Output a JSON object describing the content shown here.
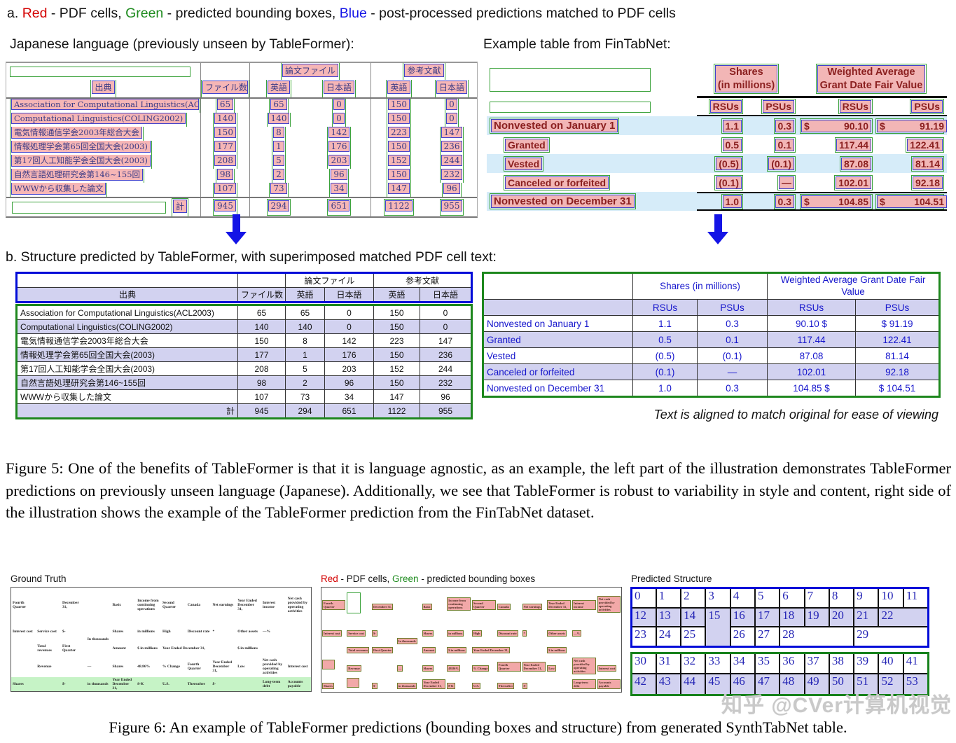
{
  "colors": {
    "pdf_cell_red": "#d40000",
    "predicted_green": "#1e8b1e",
    "postprocessed_blue": "#1414e6",
    "pink_fill": "#f6b6b6",
    "lavender": "#d2d2f0",
    "fintab_maroon": "#8b2020",
    "fintab_stripe": "#d6ecf9",
    "blue_frame": "#000bd8",
    "green_frame": "#1d871d",
    "structure_text": "#2525b5",
    "gt_green_row": "#c6f3c6"
  },
  "captions": {
    "a_prefix": "a. ",
    "a_red": "Red",
    "a_seg1": " - PDF cells, ",
    "a_green": "Green",
    "a_seg2": " - predicted bounding boxes, ",
    "a_blue": "Blue",
    "a_seg3": " - post-processed predictions matched to PDF cells",
    "left_label": "Japanese language (previously unseen by TableFormer):",
    "right_label": "Example table from FinTabNet:",
    "b": "b. Structure predicted by TableFormer, with superimposed matched PDF cell text:",
    "align_note": "Text is aligned to match original for ease of viewing",
    "figure5": "Figure 5:  One of the benefits of TableFormer is that it is language agnostic, as an example, the left part of the illustration demonstrates TableFormer predictions on previously unseen language (Japanese). Additionally, we see that TableFormer is robust to variability in style and content, right side of the illustration shows the example of the TableFormer prediction from the FinTabNet dataset.",
    "gt_label": "Ground Truth",
    "bbox_label_red": "Red",
    "bbox_label_seg1": " - PDF cells, ",
    "bbox_label_green": "Green",
    "bbox_label_seg2": " - predicted bounding boxes",
    "ps_label": "Predicted Structure",
    "watermark": "知乎 @CVer计算机视觉",
    "figure6": "Figure 6:  An example of TableFormer predictions (bounding boxes and structure) from generated SynthTabNet table."
  },
  "japanese_table": {
    "header_groups": [
      "論文ファイル",
      "参考文献"
    ],
    "header_cols": [
      "出典",
      "ファイル数",
      "英語",
      "日本語",
      "英語",
      "日本語"
    ],
    "rows": [
      [
        "Association for Computational Linguistics(ACL2003)",
        "65",
        "65",
        "0",
        "150",
        "0"
      ],
      [
        "Computational Linguistics(COLING2002)",
        "140",
        "140",
        "0",
        "150",
        "0"
      ],
      [
        "電気情報通信学会2003年総合大会",
        "150",
        "8",
        "142",
        "223",
        "147"
      ],
      [
        "情報処理学会第65回全国大会(2003)",
        "177",
        "1",
        "176",
        "150",
        "236"
      ],
      [
        "第17回人工知能学会全国大会(2003)",
        "208",
        "5",
        "203",
        "152",
        "244"
      ],
      [
        "自然言語処理研究会第146~155回",
        "98",
        "2",
        "96",
        "150",
        "232"
      ],
      [
        "WWWから収集した論文",
        "107",
        "73",
        "34",
        "147",
        "96"
      ]
    ],
    "total_label": "計",
    "totals": [
      "945",
      "294",
      "651",
      "1122",
      "955"
    ]
  },
  "fintab_table": {
    "group1_lines": [
      "Shares",
      "(in millions)"
    ],
    "group2_lines": [
      "Weighted Average",
      "Grant Date Fair Value"
    ],
    "group1": "Shares (in millions)",
    "group2": "Weighted Average Grant Date Fair Value",
    "subheaders": [
      "RSUs",
      "PSUs",
      "RSUs",
      "PSUs"
    ],
    "rows": [
      {
        "label": "Nonvested on January 1",
        "values": [
          "1.1",
          "0.3",
          "90.10",
          "91.19"
        ],
        "dollar": [
          2,
          3
        ],
        "bold": true,
        "shaded": true
      },
      {
        "label": "Granted",
        "values": [
          "0.5",
          "0.1",
          "117.44",
          "122.41"
        ],
        "indent": true
      },
      {
        "label": "Vested",
        "values": [
          "(0.5)",
          "(0.1)",
          "87.08",
          "81.14"
        ],
        "indent": true,
        "shaded": true
      },
      {
        "label": "Canceled or forfeited",
        "values": [
          "(0.1)",
          "—",
          "102.01",
          "92.18"
        ],
        "indent": true
      },
      {
        "label": "Nonvested on December 31",
        "values": [
          "1.0",
          "0.3",
          "104.85",
          "104.51"
        ],
        "dollar": [
          2,
          3
        ],
        "bold": true,
        "shaded": true
      }
    ],
    "clean_rows": [
      {
        "label": "Nonvested on January 1",
        "values": [
          "1.1",
          "0.3",
          "90.10 $",
          "$ 91.19"
        ]
      },
      {
        "label": "Granted",
        "values": [
          "0.5",
          "0.1",
          "117.44",
          "122.41"
        ],
        "shaded": true
      },
      {
        "label": "Vested",
        "values": [
          "(0.5)",
          "(0.1)",
          "87.08",
          "81.14"
        ]
      },
      {
        "label": "Canceled or forfeited",
        "values": [
          "(0.1)",
          "—",
          "102.01",
          "92.18"
        ],
        "shaded": true
      },
      {
        "label": "Nonvested on December 31",
        "values": [
          "1.0",
          "0.3",
          "104.85 $",
          "$ 104.51"
        ]
      }
    ]
  },
  "synthtab": {
    "rows": [
      [
        {
          "t": "Fourth Quarter"
        },
        {
          "t": ""
        },
        {
          "t": "December 31,"
        },
        {
          "t": ""
        },
        {
          "t": "Basic"
        },
        {
          "t": "Income from continuing operations"
        },
        {
          "t": "Second Quarter"
        },
        {
          "t": "Canada"
        },
        {
          "t": "Net earnings"
        },
        {
          "t": "Year Ended December 31,"
        },
        {
          "t": "Interest income"
        },
        {
          "t": "Net cash provided by operating activities"
        }
      ],
      [
        {
          "t": "Interest cost"
        },
        {
          "t": "Service cost"
        },
        {
          "t": "$-"
        },
        {
          "t": "In thousands",
          "rs": 2
        },
        {
          "t": "Shares"
        },
        {
          "t": "in millions"
        },
        {
          "t": "High"
        },
        {
          "t": "Discount rate"
        },
        {
          "t": "*"
        },
        {
          "t": "Other assets"
        },
        {
          "t": "—%",
          "cs": 2
        }
      ],
      [
        {
          "t": ""
        },
        {
          "t": "Total revenues"
        },
        {
          "t": "First Quarter"
        },
        {
          "t": "Amount"
        },
        {
          "t": "$ in millions"
        },
        {
          "t": "Year Ended December 31,",
          "cs": 3
        },
        {
          "t": "$ in millions",
          "cs": 3
        }
      ],
      [
        {
          "t": ""
        },
        {
          "t": "Revenue"
        },
        {
          "t": ""
        },
        {
          "t": "—"
        },
        {
          "t": "Shares"
        },
        {
          "t": "48.86%"
        },
        {
          "t": "% Change"
        },
        {
          "t": "Fourth Quarter"
        },
        {
          "t": "Year Ended December 31,"
        },
        {
          "t": "Low"
        },
        {
          "t": "Net cash provided by operating activities"
        },
        {
          "t": "Interest cost"
        }
      ],
      [
        {
          "t": "Shares"
        },
        {
          "t": ""
        },
        {
          "t": "$-"
        },
        {
          "t": "in thousands"
        },
        {
          "t": "Year Ended December 31,"
        },
        {
          "t": "8-K"
        },
        {
          "t": "U.S."
        },
        {
          "t": "Thereafter"
        },
        {
          "t": "$-"
        },
        {
          "t": ""
        },
        {
          "t": "Long-term debt"
        },
        {
          "t": "Accounts payable"
        }
      ]
    ]
  },
  "predicted_structure": {
    "blue_rows": [
      {
        "shaded": false,
        "cells": [
          {
            "n": "0"
          },
          {
            "n": "1"
          },
          {
            "n": "2"
          },
          {
            "n": "3"
          },
          {
            "n": "4"
          },
          {
            "n": "5"
          },
          {
            "n": "6"
          },
          {
            "n": "7"
          },
          {
            "n": "8"
          },
          {
            "n": "9"
          },
          {
            "n": "10"
          },
          {
            "n": "11"
          }
        ]
      },
      {
        "shaded": true,
        "cells": [
          {
            "n": "12"
          },
          {
            "n": "13"
          },
          {
            "n": "14"
          },
          {
            "n": "15",
            "rs": 2,
            "sh": true
          },
          {
            "n": "16"
          },
          {
            "n": "17"
          },
          {
            "n": "18"
          },
          {
            "n": "19"
          },
          {
            "n": "20"
          },
          {
            "n": "21"
          },
          {
            "n": "22",
            "cs": 2
          }
        ]
      },
      {
        "shaded": false,
        "cells": [
          {
            "n": "23"
          },
          {
            "n": "24"
          },
          {
            "n": "25"
          },
          {
            "n": "26"
          },
          {
            "n": "27"
          },
          {
            "n": "28",
            "cs": 3
          },
          {
            "n": "29",
            "cs": 3
          }
        ]
      }
    ],
    "green_rows": [
      {
        "shaded": false,
        "cells": [
          {
            "n": "30"
          },
          {
            "n": "31"
          },
          {
            "n": "32"
          },
          {
            "n": "33"
          },
          {
            "n": "34"
          },
          {
            "n": "35"
          },
          {
            "n": "36"
          },
          {
            "n": "37"
          },
          {
            "n": "38"
          },
          {
            "n": "39"
          },
          {
            "n": "40"
          },
          {
            "n": "41"
          }
        ]
      },
      {
        "shaded": true,
        "cells": [
          {
            "n": "42"
          },
          {
            "n": "43"
          },
          {
            "n": "44"
          },
          {
            "n": "45"
          },
          {
            "n": "46"
          },
          {
            "n": "47"
          },
          {
            "n": "48"
          },
          {
            "n": "49"
          },
          {
            "n": "50"
          },
          {
            "n": "51"
          },
          {
            "n": "52"
          },
          {
            "n": "53"
          }
        ]
      }
    ]
  }
}
